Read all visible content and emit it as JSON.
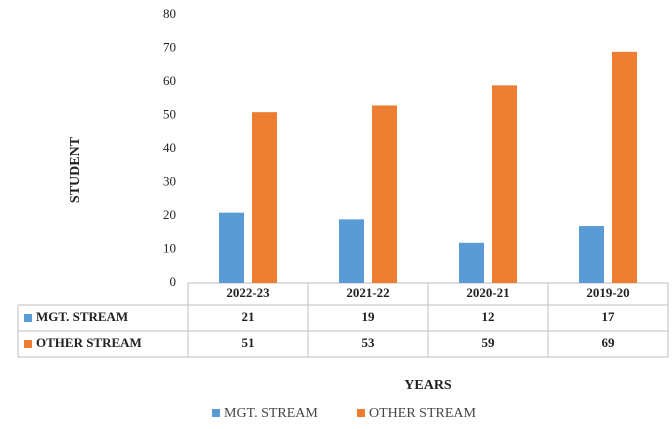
{
  "chart_data": {
    "type": "bar",
    "categories": [
      "2022-23",
      "2021-22",
      "2020-21",
      "2019-20"
    ],
    "series": [
      {
        "name": "MGT. STREAM",
        "color": "#5b9bd5",
        "values": [
          21,
          19,
          12,
          17
        ]
      },
      {
        "name": "OTHER STREAM",
        "color": "#ed7d31",
        "values": [
          51,
          53,
          59,
          69
        ]
      }
    ],
    "xlabel": "YEARS",
    "ylabel": "STUDENT",
    "ylim": [
      0,
      80
    ],
    "yticks": [
      0,
      10,
      20,
      30,
      40,
      50,
      60,
      70,
      80
    ],
    "grid": false,
    "legend": "bottom"
  }
}
